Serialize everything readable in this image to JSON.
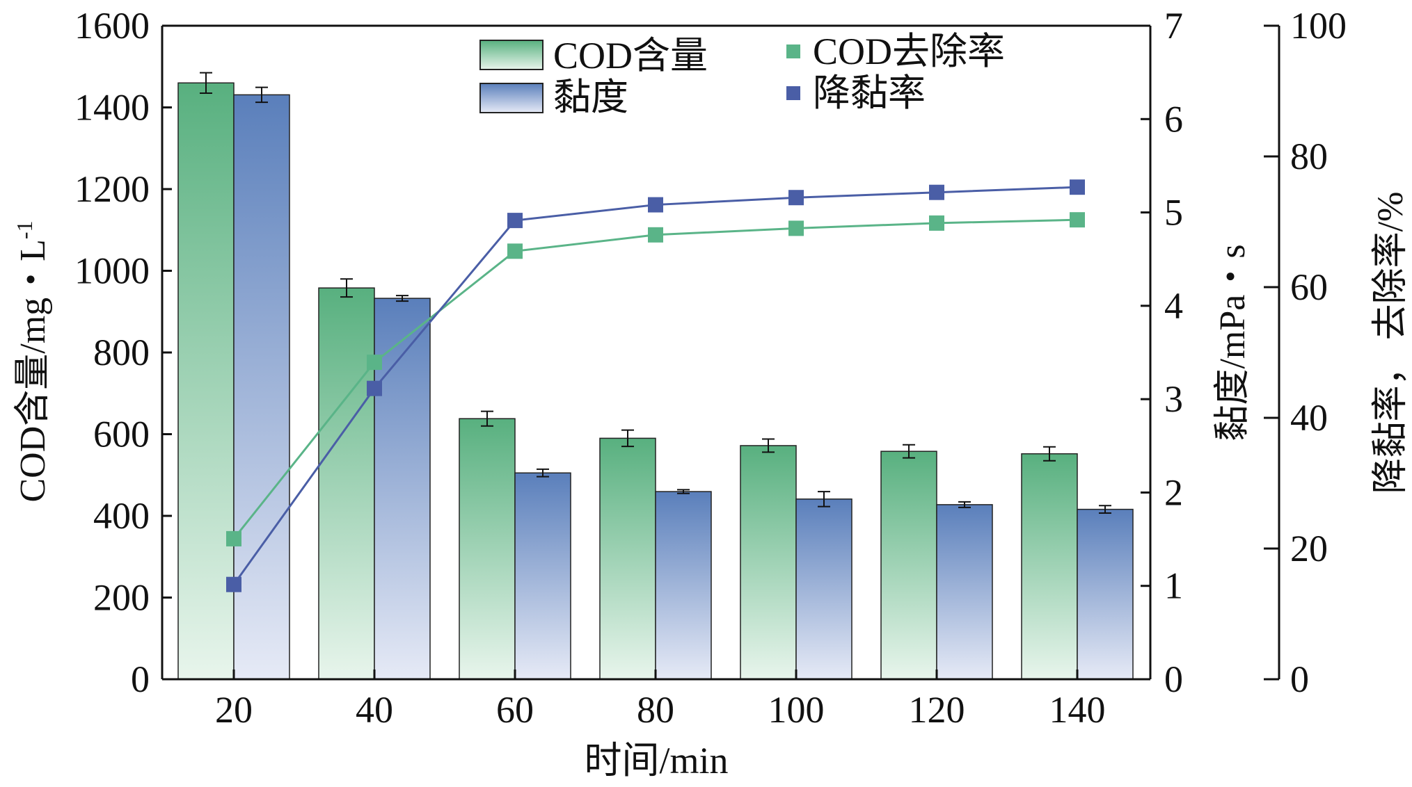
{
  "chart_data": {
    "type": "bar",
    "title": "",
    "xlabel": "时间/min",
    "y1label": "COD含量/mg・L",
    "y1label_sup": "-1",
    "y2label": "黏度/mPa・s",
    "y3label": "降黏率， 去除率/%",
    "categories": [
      20,
      40,
      60,
      80,
      100,
      120,
      140
    ],
    "x_tick_labels": [
      "20",
      "40",
      "60",
      "80",
      "100",
      "120",
      "140"
    ],
    "ylim_left": [
      0,
      1600
    ],
    "y1_ticks": [
      "0",
      "200",
      "400",
      "600",
      "800",
      "1000",
      "1200",
      "1400",
      "1600"
    ],
    "ylim_mid": [
      0,
      7
    ],
    "y2_ticks": [
      "0",
      "1",
      "2",
      "3",
      "4",
      "5",
      "6",
      "7"
    ],
    "ylim_right": [
      0,
      100
    ],
    "y3_ticks": [
      "0",
      "20",
      "40",
      "60",
      "80",
      "100"
    ],
    "bar_series": [
      {
        "name": "COD含量",
        "axis": "left",
        "color_top": "#58b07f",
        "color_bottom": "#e8f5ec",
        "values": [
          1460,
          958,
          638,
          590,
          572,
          558,
          552
        ],
        "errors": [
          25,
          22,
          18,
          20,
          16,
          16,
          17
        ]
      },
      {
        "name": "黏度",
        "axis": "mid",
        "color_top": "#5a7fbb",
        "color_bottom": "#e6eaf6",
        "values": [
          6.26,
          4.08,
          2.21,
          2.01,
          1.93,
          1.87,
          1.82
        ],
        "errors": [
          0.08,
          0.03,
          0.04,
          0.02,
          0.08,
          0.03,
          0.04
        ]
      }
    ],
    "line_series": [
      {
        "name": "COD去除率",
        "axis": "right",
        "color": "#5ab488",
        "values": [
          21.5,
          48.5,
          65.5,
          68.0,
          69.0,
          69.8,
          70.3
        ]
      },
      {
        "name": "降黏率",
        "axis": "right",
        "color": "#4a5ea6",
        "values": [
          14.5,
          44.5,
          70.2,
          72.6,
          73.7,
          74.5,
          75.3
        ]
      }
    ],
    "legend": {
      "placement": "top",
      "items": [
        "COD含量",
        "黏度",
        "COD去除率",
        "降黏率"
      ]
    }
  }
}
